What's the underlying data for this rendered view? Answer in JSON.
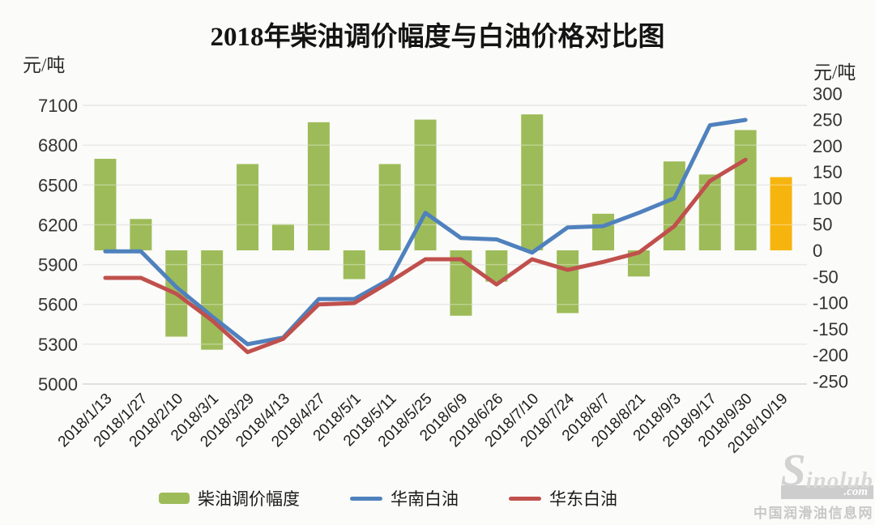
{
  "chart_data": {
    "type": "bar+line combo",
    "title": "2018年柴油调价幅度与白油价格对比图",
    "categories": [
      "2018/1/13",
      "2018/1/27",
      "2018/2/10",
      "2018/3/1",
      "2018/3/29",
      "2018/4/13",
      "2018/4/27",
      "2018/5/1",
      "2018/5/11",
      "2018/5/25",
      "2018/6/9",
      "2018/6/26",
      "2018/7/10",
      "2018/7/24",
      "2018/8/7",
      "2018/8/21",
      "2018/9/3",
      "2018/9/17",
      "2018/9/30",
      "2018/10/19"
    ],
    "series": [
      {
        "name": "柴油调价幅度",
        "type": "bar",
        "axis": "right",
        "color": "#9dbc59",
        "highlight_index": 19,
        "highlight_color": "#f6b40e",
        "values": [
          175,
          60,
          -165,
          -190,
          165,
          50,
          245,
          -55,
          165,
          250,
          -125,
          -60,
          260,
          -120,
          70,
          -50,
          170,
          145,
          230,
          140
        ]
      },
      {
        "name": "华南白油",
        "type": "line",
        "axis": "left",
        "color": "#4f81bd",
        "values": [
          6000,
          6000,
          5730,
          5510,
          5300,
          5350,
          5640,
          5640,
          5790,
          6290,
          6100,
          6090,
          5990,
          6180,
          6190,
          6290,
          6400,
          6950,
          6990,
          null
        ]
      },
      {
        "name": "华东白油",
        "type": "line",
        "axis": "left",
        "color": "#c0504d",
        "values": [
          5800,
          5800,
          5680,
          5480,
          5240,
          5340,
          5600,
          5610,
          5770,
          5940,
          5940,
          5750,
          5940,
          5860,
          5920,
          5990,
          6190,
          6530,
          6690,
          null
        ]
      }
    ],
    "left_axis": {
      "unit": "元/吨",
      "min": 5000,
      "max": 7100,
      "ticks": [
        7100,
        6800,
        6500,
        6200,
        5900,
        5600,
        5300,
        5000
      ]
    },
    "right_axis": {
      "unit": "元/吨",
      "min": -250,
      "max": 300,
      "ticks": [
        300,
        250,
        200,
        150,
        100,
        50,
        0,
        -50,
        -100,
        -150,
        -200,
        -250
      ]
    },
    "grid": true,
    "legend_position": "bottom"
  },
  "watermark": {
    "s": "S",
    "inolub": "inolub",
    "com": ".com",
    "cn": "中国润滑油信息网"
  }
}
